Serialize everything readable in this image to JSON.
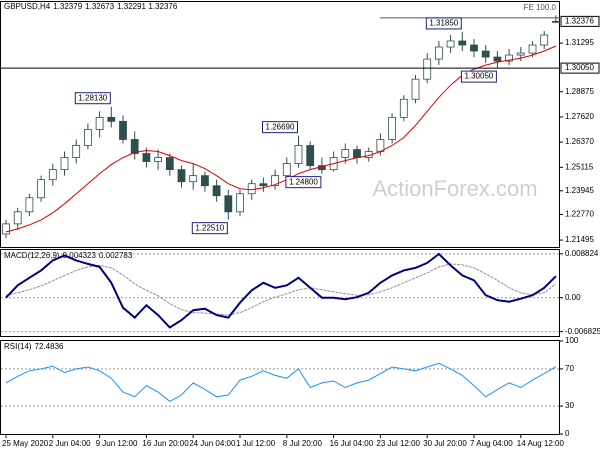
{
  "chart_data": [
    {
      "type": "candlestick",
      "title": "GBPUSD,H4",
      "categories": [
        "25 May 2020",
        null,
        null,
        null,
        "2 Jun 04:00",
        null,
        null,
        null,
        "9 Jun 12:00",
        null,
        null,
        null,
        "16 Jun 20:00",
        null,
        null,
        null,
        "24 Jun 04:00",
        null,
        null,
        null,
        "1 Jul 12:00",
        null,
        null,
        null,
        "8 Jul 20:00",
        null,
        null,
        null,
        "16 Jul 04:00",
        null,
        null,
        null,
        "23 Jul 12:00",
        null,
        null,
        null,
        "30 Jul 20:00",
        null,
        null,
        null,
        "7 Aug 04:00",
        null,
        null,
        null,
        "14 Aug 12:00",
        null,
        null,
        null
      ],
      "open": [
        1.218,
        1.223,
        1.229,
        1.236,
        1.245,
        1.25,
        1.256,
        1.262,
        1.27,
        1.276,
        1.274,
        1.265,
        1.258,
        1.254,
        1.256,
        1.25,
        1.244,
        1.247,
        1.242,
        1.237,
        1.229,
        1.238,
        1.243,
        1.242,
        1.247,
        1.253,
        1.262,
        1.252,
        1.25,
        1.256,
        1.26,
        1.256,
        1.259,
        1.265,
        1.276,
        1.285,
        1.295,
        1.305,
        1.311,
        1.314,
        1.312,
        1.309,
        1.306,
        1.304,
        1.307,
        1.308,
        1.312,
        1.32379
      ],
      "high": [
        1.225,
        1.231,
        1.238,
        1.247,
        1.253,
        1.259,
        1.265,
        1.273,
        1.279,
        1.2813,
        1.277,
        1.269,
        1.261,
        1.26,
        1.258,
        1.252,
        1.253,
        1.249,
        1.245,
        1.24,
        1.24,
        1.245,
        1.246,
        1.25,
        1.256,
        1.2669,
        1.264,
        1.256,
        1.259,
        1.263,
        1.262,
        1.261,
        1.268,
        1.278,
        1.287,
        1.297,
        1.308,
        1.314,
        1.317,
        1.3185,
        1.315,
        1.312,
        1.309,
        1.31,
        1.311,
        1.314,
        1.319,
        1.32673
      ],
      "low": [
        1.216,
        1.22,
        1.227,
        1.234,
        1.242,
        1.247,
        1.253,
        1.26,
        1.266,
        1.271,
        1.263,
        1.255,
        1.251,
        1.25,
        1.247,
        1.241,
        1.24,
        1.239,
        1.234,
        1.2251,
        1.227,
        1.235,
        1.239,
        1.24,
        1.245,
        1.251,
        1.25,
        1.248,
        1.249,
        1.253,
        1.253,
        1.254,
        1.257,
        1.263,
        1.274,
        1.283,
        1.293,
        1.302,
        1.308,
        1.309,
        1.306,
        1.303,
        1.3005,
        1.302,
        1.304,
        1.306,
        1.31,
        1.32291
      ],
      "close": [
        1.223,
        1.229,
        1.236,
        1.245,
        1.25,
        1.256,
        1.262,
        1.27,
        1.276,
        1.274,
        1.265,
        1.258,
        1.254,
        1.256,
        1.25,
        1.244,
        1.247,
        1.242,
        1.237,
        1.229,
        1.238,
        1.243,
        1.242,
        1.247,
        1.253,
        1.262,
        1.252,
        1.25,
        1.256,
        1.26,
        1.256,
        1.259,
        1.265,
        1.276,
        1.285,
        1.295,
        1.305,
        1.311,
        1.314,
        1.312,
        1.309,
        1.306,
        1.304,
        1.307,
        1.308,
        1.312,
        1.317,
        1.32376
      ],
      "color": "#2f4f4f",
      "up_color": "#ffffff",
      "down_color": "#2f4f4f",
      "ma": {
        "color": "#e00000",
        "values": [
          1.219,
          1.2205,
          1.2225,
          1.225,
          1.2285,
          1.233,
          1.238,
          1.243,
          1.248,
          1.2525,
          1.256,
          1.2585,
          1.2595,
          1.259,
          1.257,
          1.2545,
          1.253,
          1.2505,
          1.247,
          1.243,
          1.2405,
          1.24,
          1.241,
          1.2425,
          1.245,
          1.248,
          1.25,
          1.2515,
          1.253,
          1.2545,
          1.256,
          1.257,
          1.259,
          1.262,
          1.266,
          1.272,
          1.279,
          1.286,
          1.292,
          1.297,
          1.3,
          1.302,
          1.3035,
          1.3045,
          1.3055,
          1.307,
          1.309,
          1.3115
        ]
      },
      "ylim": [
        1.2115,
        1.3334
      ],
      "yticks": [
        1.31295,
        1.28875,
        {
          "value": 1.2762,
          "label": "1.27620"
        },
        {
          "value": 1.2637,
          "label": "1.26370"
        },
        1.25115,
        1.23945,
        {
          "value": 1.2277,
          "label": "1.22770"
        },
        1.21495
      ],
      "last_price": 1.32376,
      "levels": [
        {
          "value": 1.3005,
          "label": "1.30050"
        }
      ],
      "fibo": {
        "label": "FE 100.0",
        "value": 1.3255
      },
      "annotations": [
        {
          "value": 1.2813,
          "label": "1.28130"
        },
        {
          "value": 1.2251,
          "label": "1.22510"
        },
        {
          "value": 1.2669,
          "label": "1.26690"
        },
        {
          "value": 1.248,
          "label": "1.24800"
        },
        {
          "value": 1.3185,
          "label": "1.31850"
        },
        {
          "value": 1.3005,
          "label": "1.30050"
        }
      ],
      "watermark": "ActionForex.com"
    },
    {
      "type": "line",
      "title": "MACD(12,26,9)",
      "series": [
        {
          "color": "#000080",
          "values": [
            0.0,
            0.0025,
            0.004,
            0.0055,
            0.0075,
            0.0085,
            0.0075,
            0.0068,
            0.0062,
            0.003,
            -0.002,
            -0.004,
            -0.0015,
            -0.0035,
            -0.006,
            -0.0045,
            -0.0025,
            -0.0022,
            -0.0035,
            -0.004,
            -0.001,
            0.0015,
            0.003,
            0.002,
            0.0025,
            0.004,
            0.002,
            0.0,
            0.0,
            -0.0003,
            0.0001,
            0.001,
            0.003,
            0.0045,
            0.0055,
            0.006,
            0.007,
            0.0088,
            0.0065,
            0.0045,
            0.0035,
            0.0005,
            -0.0005,
            -0.0008,
            -0.0002,
            0.0005,
            0.002,
            0.004323
          ]
        },
        {
          "color": "#909090",
          "values": [
            0.0005,
            0.001,
            0.0016,
            0.0024,
            0.0034,
            0.0045,
            0.0055,
            0.0062,
            0.0065,
            0.006,
            0.0046,
            0.0028,
            0.0015,
            0.0004,
            -0.0012,
            -0.0024,
            -0.003,
            -0.0031,
            -0.0033,
            -0.0035,
            -0.003,
            -0.002,
            -0.0008,
            0.0001,
            0.0008,
            0.0016,
            0.002,
            0.0016,
            0.0012,
            0.0008,
            0.0005,
            0.0006,
            0.0012,
            0.002,
            0.003,
            0.004,
            0.005,
            0.0062,
            0.0068,
            0.0066,
            0.006,
            0.0048,
            0.0035,
            0.002,
            0.001,
            0.0006,
            0.001,
            0.002783
          ]
        }
      ],
      "ylim": [
        -0.0077,
        0.0096
      ],
      "yticks": [
        0.008824,
        {
          "value": 0,
          "label": "0.00"
        },
        -0.006825
      ]
    },
    {
      "type": "line",
      "title": "RSI(14)",
      "series": [
        {
          "color": "#1e90ff",
          "values": [
            55,
            62,
            68,
            70,
            73,
            66,
            70,
            72,
            68,
            60,
            45,
            40,
            52,
            45,
            35,
            42,
            55,
            48,
            40,
            42,
            58,
            62,
            68,
            63,
            60,
            70,
            50,
            55,
            57,
            50,
            55,
            58,
            65,
            72,
            70,
            68,
            72,
            76,
            70,
            63,
            52,
            40,
            48,
            55,
            50,
            58,
            65,
            72.4836
          ]
        }
      ],
      "ylim": [
        0,
        100
      ],
      "yticks": [
        100,
        70,
        30,
        0
      ]
    }
  ]
}
